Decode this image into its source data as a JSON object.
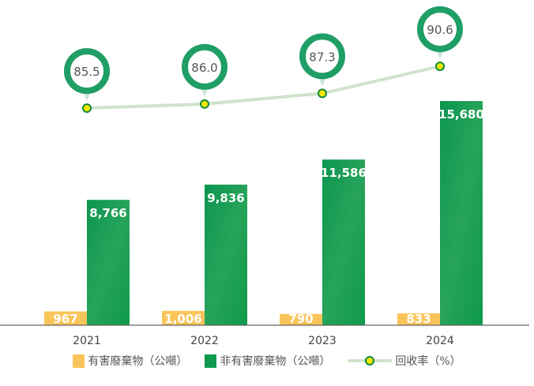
{
  "chart_data": {
    "type": "bar+line",
    "categories": [
      "2021",
      "2022",
      "2023",
      "2024"
    ],
    "series": [
      {
        "name": "有害廢棄物（公噸）",
        "type": "bar",
        "color": "#f9c55a",
        "values": [
          967,
          1006,
          790,
          833
        ],
        "labels": [
          "967",
          "1,006",
          "790",
          "833"
        ]
      },
      {
        "name": "非有害廢棄物（公噸）",
        "type": "bar",
        "color": "#0f9a4f",
        "values": [
          8766,
          9836,
          11586,
          15680
        ],
        "labels": [
          "8,766",
          "9,836",
          "11,586",
          "15,680"
        ]
      },
      {
        "name": "回收率（%）",
        "type": "line",
        "color": "#cfe3cb",
        "marker_color": "#f5e900",
        "values": [
          85.5,
          86.0,
          87.3,
          90.6
        ],
        "labels": [
          "85.5",
          "86.0",
          "87.3",
          "90.6"
        ]
      }
    ],
    "grid": false,
    "legend": "bottom"
  }
}
